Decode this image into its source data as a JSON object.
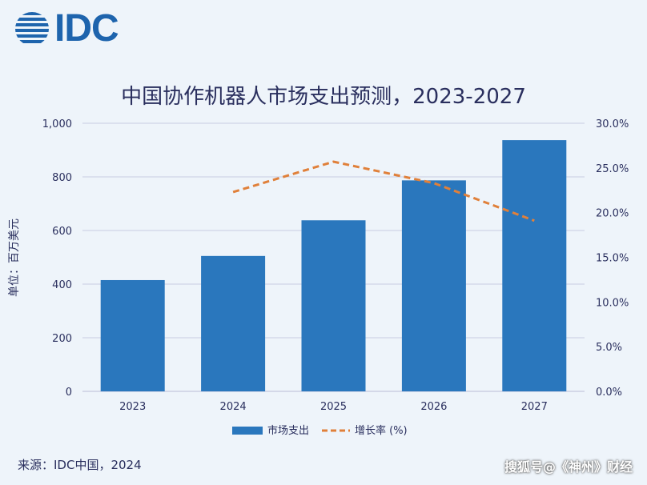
{
  "logo": {
    "text": "IDC",
    "color": "#1e64ad"
  },
  "source": "来源：IDC中国，2024",
  "watermark": "搜狐号@《神州》财经",
  "chart_data": {
    "type": "bar",
    "title": "中国协作机器人市场支出预测，2023-2027",
    "ylabel": "单位：百万美元",
    "categories": [
      "2023",
      "2024",
      "2025",
      "2026",
      "2027"
    ],
    "ylim": [
      0,
      1000
    ],
    "y_ticks": [
      "0",
      "200",
      "400",
      "600",
      "800",
      "1,000"
    ],
    "y2lim": [
      0,
      30
    ],
    "y2_ticks": [
      "0.0%",
      "5.0%",
      "10.0%",
      "15.0%",
      "20.0%",
      "25.0%",
      "30.0%"
    ],
    "series": [
      {
        "name": "市场支出",
        "kind": "bar",
        "color": "#2a77bd",
        "values": [
          415,
          505,
          638,
          787,
          937
        ]
      },
      {
        "name": "增长率 (%)",
        "kind": "line",
        "axis": "right",
        "style": "dashed",
        "color": "#e0803a",
        "values": [
          null,
          22.3,
          25.7,
          23.3,
          19.1
        ]
      }
    ],
    "legend": "bottom",
    "grid": true
  }
}
